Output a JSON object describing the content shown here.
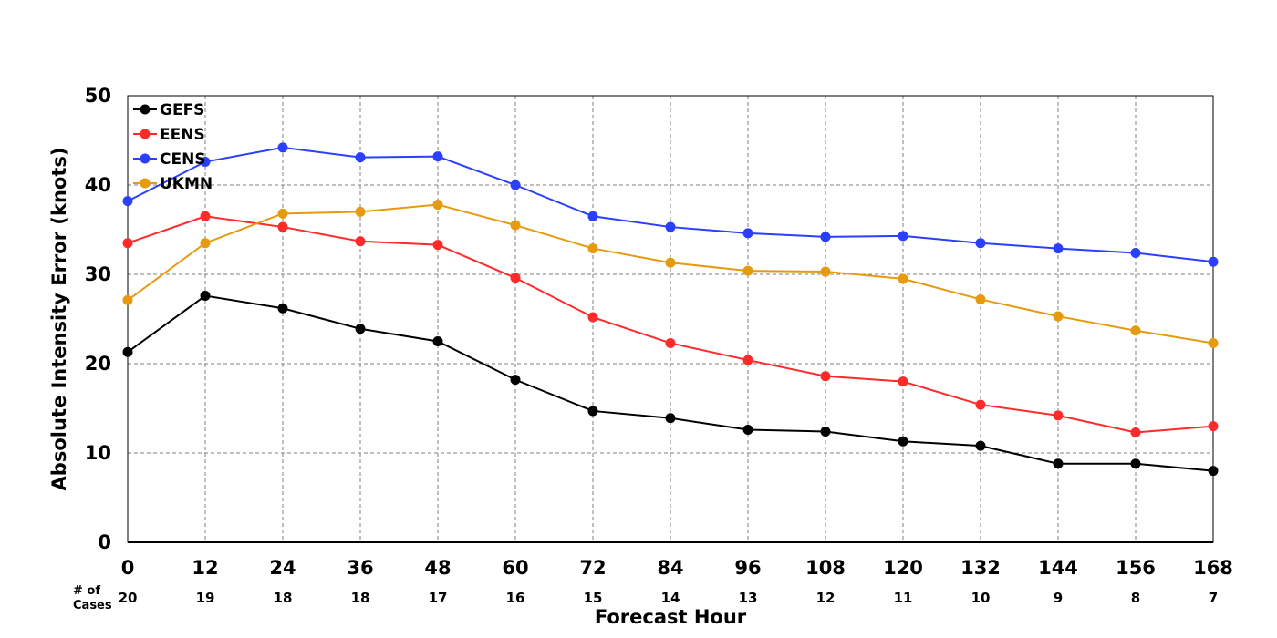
{
  "chart_data": {
    "type": "line",
    "title": "",
    "xlabel": "Forecast Hour",
    "ylabel": "Absolute Intensity Error (knots)",
    "cases_label_line1": "# of",
    "cases_label_line2": "Cases",
    "x": [
      0,
      12,
      24,
      36,
      48,
      60,
      72,
      84,
      96,
      108,
      120,
      132,
      144,
      156,
      168
    ],
    "x_tick_labels": [
      "0",
      "12",
      "24",
      "36",
      "48",
      "60",
      "72",
      "84",
      "96",
      "108",
      "120",
      "132",
      "144",
      "156",
      "168"
    ],
    "cases": [
      "20",
      "19",
      "18",
      "18",
      "17",
      "16",
      "15",
      "14",
      "13",
      "12",
      "11",
      "10",
      "9",
      "8",
      "7"
    ],
    "xlim": [
      0,
      168
    ],
    "ylim": [
      0,
      50
    ],
    "y_ticks": [
      0,
      10,
      20,
      30,
      40,
      50
    ],
    "y_tick_labels": [
      "0",
      "10",
      "20",
      "30",
      "40",
      "50"
    ],
    "grid": true,
    "legend_position": "top-left",
    "series": [
      {
        "name": "GEFS",
        "color": "#000000",
        "values": [
          21.3,
          27.6,
          26.2,
          23.9,
          22.5,
          18.2,
          14.7,
          13.9,
          12.6,
          12.4,
          11.3,
          10.8,
          8.8,
          8.8,
          8.0
        ]
      },
      {
        "name": "EENS",
        "color": "#ff2a2a",
        "values": [
          33.5,
          36.5,
          35.3,
          33.7,
          33.3,
          29.6,
          25.2,
          22.3,
          20.4,
          18.6,
          18.0,
          15.4,
          14.2,
          12.3,
          13.0
        ]
      },
      {
        "name": "CENS",
        "color": "#2a3fff",
        "values": [
          38.2,
          42.6,
          44.2,
          43.1,
          43.2,
          40.0,
          36.5,
          35.3,
          34.6,
          34.2,
          34.3,
          33.5,
          32.9,
          32.4,
          31.4
        ]
      },
      {
        "name": "UKMN",
        "color": "#e69a0e",
        "values": [
          27.1,
          33.5,
          36.8,
          37.0,
          37.8,
          35.5,
          32.9,
          31.3,
          30.4,
          30.3,
          29.5,
          27.2,
          25.3,
          23.7,
          22.3
        ]
      }
    ]
  }
}
